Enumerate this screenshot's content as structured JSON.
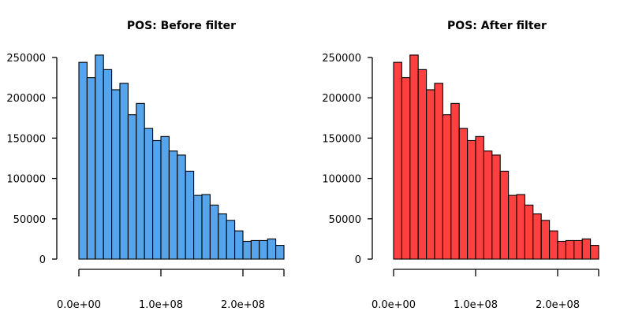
{
  "chart_data": [
    {
      "type": "bar",
      "title": "POS: Before filter",
      "xlabel": "",
      "ylabel": "",
      "bar_color": "#56a5ec",
      "bin_width": 10000000,
      "x_start": 0,
      "xlim": [
        0,
        250000000
      ],
      "ylim": [
        0,
        250000
      ],
      "x_ticks": [
        0,
        100000000,
        200000000
      ],
      "x_tick_labels": [
        "0.0e+00",
        "1.0e+08",
        "2.0e+08"
      ],
      "y_ticks": [
        0,
        50000,
        100000,
        150000,
        200000,
        250000
      ],
      "y_tick_labels": [
        "0",
        "50000",
        "100000",
        "150000",
        "200000",
        "250000"
      ],
      "values": [
        244000,
        225000,
        253000,
        235000,
        210000,
        218000,
        179000,
        193000,
        162000,
        147000,
        152000,
        134000,
        129000,
        109000,
        79000,
        80000,
        67000,
        56000,
        48000,
        35000,
        22000,
        23000,
        23000,
        25000,
        17000
      ]
    },
    {
      "type": "bar",
      "title": "POS: After filter",
      "xlabel": "",
      "ylabel": "",
      "bar_color": "#ff4040",
      "bin_width": 10000000,
      "x_start": 0,
      "xlim": [
        0,
        250000000
      ],
      "ylim": [
        0,
        250000
      ],
      "x_ticks": [
        0,
        100000000,
        200000000
      ],
      "x_tick_labels": [
        "0.0e+00",
        "1.0e+08",
        "2.0e+08"
      ],
      "y_ticks": [
        0,
        50000,
        100000,
        150000,
        200000,
        250000
      ],
      "y_tick_labels": [
        "0",
        "50000",
        "100000",
        "150000",
        "200000",
        "250000"
      ],
      "values": [
        244000,
        225000,
        253000,
        235000,
        210000,
        218000,
        179000,
        193000,
        162000,
        147000,
        152000,
        134000,
        129000,
        109000,
        79000,
        80000,
        67000,
        56000,
        48000,
        35000,
        22000,
        23000,
        23000,
        25000,
        17000
      ]
    }
  ]
}
